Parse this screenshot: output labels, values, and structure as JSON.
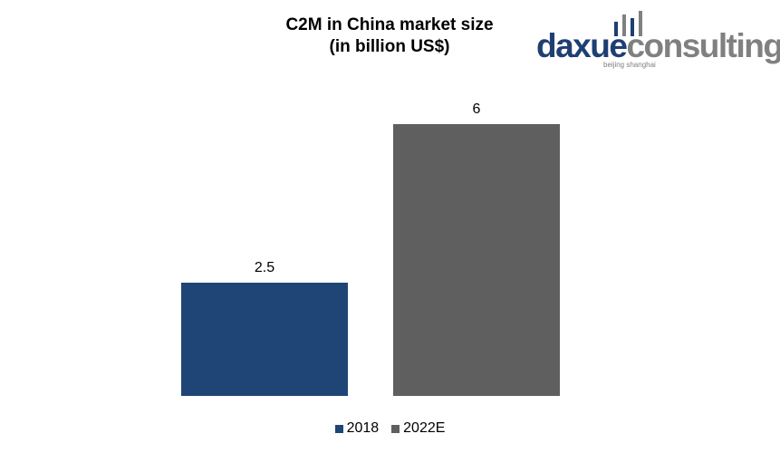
{
  "chart_data": {
    "type": "bar",
    "title_line1": "C2M in China market size",
    "title_line2": "(in billion US$)",
    "categories": [
      "2018",
      "2022E"
    ],
    "values": [
      2.5,
      6
    ],
    "data_labels": [
      "2.5",
      "6"
    ],
    "colors": [
      "#1f4577",
      "#5f5f5f"
    ],
    "ylim": [
      0,
      7
    ],
    "grid": false,
    "legend_position": "bottom"
  },
  "logo": {
    "part1": "daxue",
    "part2": "consulting",
    "tagline": "beijing shanghai",
    "brand_color": "#1f3f73",
    "accent_color": "#808080"
  }
}
